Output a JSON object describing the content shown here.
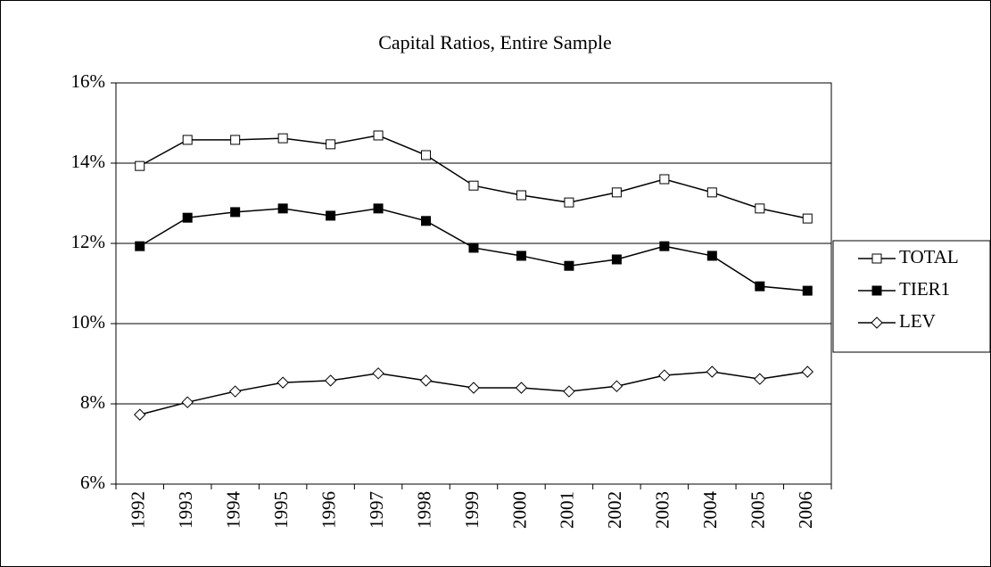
{
  "chart_data": {
    "type": "line",
    "title": "Capital Ratios, Entire Sample",
    "categories": [
      "1992",
      "1993",
      "1994",
      "1995",
      "1996",
      "1997",
      "1998",
      "1999",
      "2000",
      "2001",
      "2002",
      "2003",
      "2004",
      "2005",
      "2006"
    ],
    "series": [
      {
        "name": "TOTAL",
        "color": "#000000",
        "marker": "square",
        "marker_fill": "#ffffff",
        "values": [
          13.93,
          14.58,
          14.58,
          14.62,
          14.47,
          14.69,
          14.2,
          13.44,
          13.2,
          13.02,
          13.27,
          13.6,
          13.27,
          12.87,
          12.62
        ]
      },
      {
        "name": "TIER1",
        "color": "#000000",
        "marker": "square",
        "marker_fill": "#000000",
        "values": [
          11.93,
          12.64,
          12.78,
          12.87,
          12.69,
          12.87,
          12.56,
          11.89,
          11.69,
          11.44,
          11.6,
          11.93,
          11.69,
          10.93,
          10.82
        ]
      },
      {
        "name": "LEV",
        "color": "#000000",
        "marker": "diamond",
        "marker_fill": "#ffffff",
        "values": [
          7.73,
          8.04,
          8.31,
          8.53,
          8.58,
          8.76,
          8.58,
          8.4,
          8.4,
          8.31,
          8.44,
          8.71,
          8.8,
          8.62,
          8.8
        ]
      }
    ],
    "ylim": [
      6,
      16
    ],
    "yticks": [
      {
        "value": 6,
        "label": "6%"
      },
      {
        "value": 8,
        "label": "8%"
      },
      {
        "value": 10,
        "label": "10%"
      },
      {
        "value": 12,
        "label": "12%"
      },
      {
        "value": 14,
        "label": "14%"
      },
      {
        "value": 16,
        "label": "16%"
      }
    ],
    "grid": true,
    "legend": "right"
  }
}
